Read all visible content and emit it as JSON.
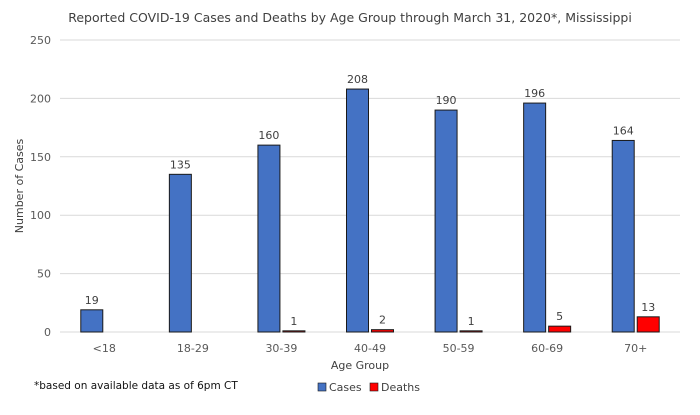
{
  "chart_data": {
    "type": "bar",
    "title": "Reported COVID-19 Cases and Deaths by Age Group through March 31, 2020*, Mississippi",
    "xlabel": "Age Group",
    "ylabel": "Number of Cases",
    "categories": [
      "<18",
      "18-29",
      "30-39",
      "40-49",
      "50-59",
      "60-69",
      "70+"
    ],
    "series": [
      {
        "name": "Cases",
        "color": "#4472c4",
        "values": [
          19,
          135,
          160,
          208,
          190,
          196,
          164
        ],
        "labels": [
          "19",
          "135",
          "160",
          "208",
          "190",
          "196",
          "164"
        ]
      },
      {
        "name": "Deaths",
        "color": "#ff0000",
        "values": [
          0,
          0,
          1,
          2,
          1,
          5,
          13
        ],
        "labels": [
          "",
          "",
          "1",
          "2",
          "1",
          "5",
          "13"
        ]
      }
    ],
    "ylim": [
      0,
      250
    ],
    "yticks": [
      0,
      50,
      100,
      150,
      200,
      250
    ],
    "grid": true,
    "legend": "bottom-center"
  },
  "footnote": "*based on available data as of 6pm CT",
  "colors": {
    "grid": "#d9d9d9",
    "tick": "#595959"
  }
}
